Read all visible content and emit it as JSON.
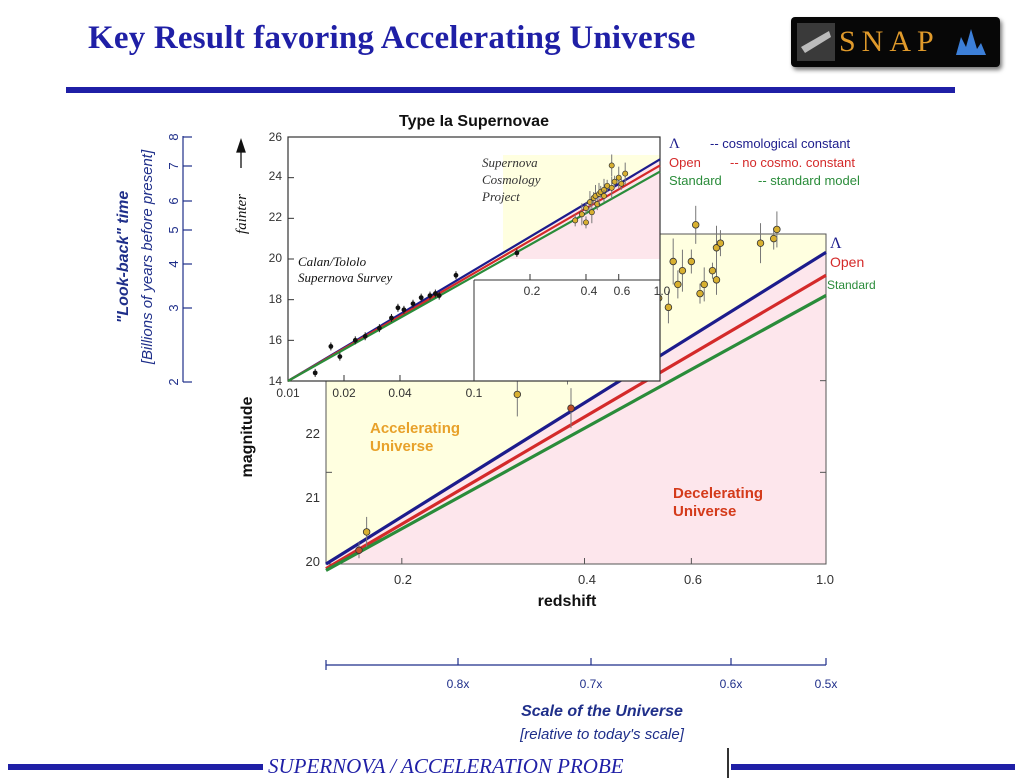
{
  "slide": {
    "title": "Key Result favoring Accelerating Universe",
    "logo_text": "SNAP",
    "footer": "SUPERNOVA  /  ACCELERATION PROBE"
  },
  "colors": {
    "title": "#1f1fa6",
    "lambda": "#1c1c8c",
    "open": "#d42a2a",
    "standard": "#2a8c3a",
    "accelerating_region": "#ffffe0",
    "decelerating_region": "#fde6ec",
    "label_orange": "#e8a12a",
    "label_red": "#d43a1a",
    "point_fill": "#d8b030",
    "point_fill_red": "#c0502a"
  },
  "chart_data": [
    {
      "type": "scatter",
      "title": "",
      "xlabel": "redshift",
      "ylabel": "magnitude",
      "x_scale": "log",
      "xlim": [
        0.15,
        1.0
      ],
      "ylim": [
        20,
        23.6
      ],
      "x_ticks": [
        "0.2",
        "0.4",
        "0.6",
        "1.0"
      ],
      "y_ticks": [
        "20",
        "21",
        "22"
      ],
      "region_labels": [
        {
          "lines": [
            "Accelerating",
            "Universe"
          ]
        },
        {
          "lines": [
            "Decelerating",
            "Universe"
          ]
        }
      ],
      "series": [
        {
          "name": "Λ",
          "type": "line",
          "x": [
            0.15,
            1.0
          ],
          "y": [
            20.0,
            23.4
          ]
        },
        {
          "name": "Open",
          "type": "line",
          "x": [
            0.15,
            1.0
          ],
          "y": [
            19.95,
            23.15
          ]
        },
        {
          "name": "Standard",
          "type": "line",
          "x": [
            0.15,
            1.0
          ],
          "y": [
            19.93,
            22.93
          ]
        },
        {
          "type": "points",
          "x": [
            0.17,
            0.175,
            0.31,
            0.375,
            0.38,
            0.37,
            0.38,
            0.39,
            0.395,
            0.4,
            0.42,
            0.43,
            0.44,
            0.44,
            0.45,
            0.46,
            0.46,
            0.47,
            0.48,
            0.49,
            0.5,
            0.5,
            0.52,
            0.53,
            0.55,
            0.56,
            0.57,
            0.58,
            0.6,
            0.61,
            0.62,
            0.63,
            0.65,
            0.66,
            0.66,
            0.67,
            0.78,
            0.82,
            0.83
          ],
          "y": [
            20.15,
            20.35,
            21.85,
            22.1,
            21.7,
            23.1,
            22.4,
            22.5,
            22.6,
            22.45,
            22.5,
            22.5,
            22.2,
            22.6,
            22.9,
            22.8,
            22.2,
            22.7,
            23.0,
            22.85,
            22.9,
            23.0,
            22.95,
            22.9,
            22.8,
            23.3,
            23.05,
            23.2,
            23.3,
            23.7,
            22.95,
            23.05,
            23.2,
            23.1,
            23.45,
            23.5,
            23.5,
            23.55,
            23.65
          ]
        }
      ],
      "legend": [
        {
          "label": "Λ",
          "color_key": "lambda"
        },
        {
          "label": "Open",
          "color_key": "open"
        },
        {
          "label": "Standard",
          "color_key": "standard"
        }
      ]
    },
    {
      "type": "scatter",
      "title": "Type Ia Supernovae",
      "xlabel": "",
      "ylabel": "fainter",
      "x_scale": "log",
      "xlim": [
        0.01,
        1.0
      ],
      "ylim": [
        14,
        26
      ],
      "x_ticks": [
        "0.01",
        "0.02",
        "0.04",
        "0.1",
        "0.2",
        "0.4",
        "0.6",
        "1.0"
      ],
      "y_ticks": [
        "14",
        "16",
        "18",
        "20",
        "22",
        "24",
        "26"
      ],
      "annotations": [
        {
          "lines": [
            "Calan/Tololo",
            "Supernova Survey"
          ]
        },
        {
          "lines": [
            "Supernova",
            "Cosmology",
            "Project"
          ]
        }
      ],
      "legend": [
        {
          "symbol": "Λ",
          "text": "-- cosmological constant",
          "color_key": "lambda"
        },
        {
          "symbol": "Open",
          "text": "-- no cosmo. constant",
          "color_key": "open"
        },
        {
          "symbol": "Standard",
          "text": "-- standard model",
          "color_key": "standard"
        }
      ],
      "series": [
        {
          "name": "Λ",
          "type": "line",
          "x": [
            0.01,
            1.0
          ],
          "y": [
            14.0,
            24.9
          ]
        },
        {
          "name": "Open",
          "type": "line",
          "x": [
            0.01,
            1.0
          ],
          "y": [
            14.0,
            24.6
          ]
        },
        {
          "name": "Standard",
          "type": "line",
          "x": [
            0.01,
            1.0
          ],
          "y": [
            14.0,
            24.3
          ]
        },
        {
          "type": "points",
          "x": [
            0.014,
            0.017,
            0.019,
            0.023,
            0.026,
            0.031,
            0.036,
            0.039,
            0.042,
            0.047,
            0.052,
            0.058,
            0.062,
            0.065,
            0.08,
            0.17
          ],
          "y": [
            14.4,
            15.7,
            15.2,
            16.0,
            16.2,
            16.6,
            17.1,
            17.6,
            17.5,
            17.8,
            18.1,
            18.2,
            18.3,
            18.2,
            19.2,
            20.3
          ]
        },
        {
          "type": "points",
          "x": [
            0.35,
            0.38,
            0.4,
            0.42,
            0.44,
            0.45,
            0.46,
            0.47,
            0.48,
            0.5,
            0.52,
            0.55,
            0.57,
            0.6,
            0.62,
            0.65,
            0.4,
            0.43,
            0.5,
            0.55
          ],
          "y": [
            21.9,
            22.2,
            22.5,
            22.8,
            23.0,
            23.1,
            22.7,
            23.2,
            23.3,
            23.4,
            23.6,
            23.5,
            23.8,
            24.0,
            23.7,
            24.2,
            21.8,
            22.3,
            23.1,
            24.6
          ]
        }
      ]
    },
    {
      "type": "axis",
      "title": "Scale of the Universe",
      "subtitle": "[relative to today's scale]",
      "tick_labels": [
        "0.8x",
        "0.7x",
        "0.6x",
        "0.5x"
      ],
      "tick_values": [
        0.8,
        0.7,
        0.6,
        0.5
      ]
    },
    {
      "type": "axis",
      "title": "\"Look-back\" time",
      "subtitle": "[Billions of years before present]",
      "tick_labels": [
        "2",
        "3",
        "4",
        "5",
        "6",
        "7",
        "8"
      ]
    }
  ]
}
